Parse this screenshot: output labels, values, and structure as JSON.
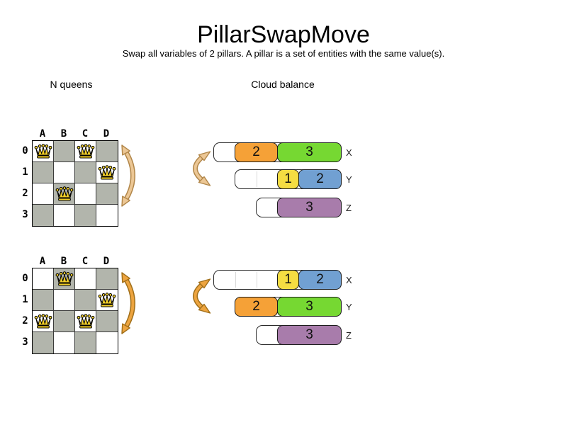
{
  "title": "PillarSwapMove",
  "subtitle": "Swap all variables of 2 pillars. A pillar is a set of entities with the same value(s).",
  "sections": {
    "nqueens": "N queens",
    "cloud": "Cloud balance"
  },
  "colors": {
    "board_dark": "#b2b5ac",
    "board_light": "#ffffff",
    "queen_gold": "#f4d029",
    "arrow_before_fill": "#ecc795",
    "arrow_before_stroke": "#b18649",
    "arrow_after_fill": "#eda43f",
    "arrow_after_stroke": "#a06f1a",
    "blocks": {
      "orange": "#f5a137",
      "green": "#76d832",
      "yellow": "#f5dd42",
      "blue": "#71a0d2",
      "purple": "#a87cab"
    }
  },
  "boards": [
    {
      "columns": [
        "A",
        "B",
        "C",
        "D"
      ],
      "rows": [
        "0",
        "1",
        "2",
        "3"
      ],
      "queens": [
        [
          0,
          0
        ],
        [
          0,
          2
        ],
        [
          1,
          3
        ],
        [
          2,
          1
        ]
      ],
      "arrow": "before"
    },
    {
      "columns": [
        "A",
        "B",
        "C",
        "D"
      ],
      "rows": [
        "0",
        "1",
        "2",
        "3"
      ],
      "queens": [
        [
          0,
          1
        ],
        [
          1,
          3
        ],
        [
          2,
          0
        ],
        [
          2,
          2
        ]
      ],
      "arrow": "after"
    }
  ],
  "clouds": [
    {
      "arrow": "before",
      "rows": [
        {
          "label": "X",
          "slots": 6,
          "blocks": [
            {
              "value": 2,
              "color": "orange"
            },
            {
              "value": 3,
              "color": "green"
            }
          ]
        },
        {
          "label": "Y",
          "slots": 5,
          "blocks": [
            {
              "value": 1,
              "color": "yellow"
            },
            {
              "value": 2,
              "color": "blue"
            }
          ]
        },
        {
          "label": "Z",
          "slots": 4,
          "blocks": [
            {
              "value": 3,
              "color": "purple"
            }
          ]
        }
      ]
    },
    {
      "arrow": "after",
      "rows": [
        {
          "label": "X",
          "slots": 6,
          "blocks": [
            {
              "value": 1,
              "color": "yellow"
            },
            {
              "value": 2,
              "color": "blue"
            }
          ]
        },
        {
          "label": "Y",
          "slots": 5,
          "blocks": [
            {
              "value": 2,
              "color": "orange"
            },
            {
              "value": 3,
              "color": "green"
            }
          ]
        },
        {
          "label": "Z",
          "slots": 4,
          "blocks": [
            {
              "value": 3,
              "color": "purple"
            }
          ]
        }
      ]
    }
  ]
}
